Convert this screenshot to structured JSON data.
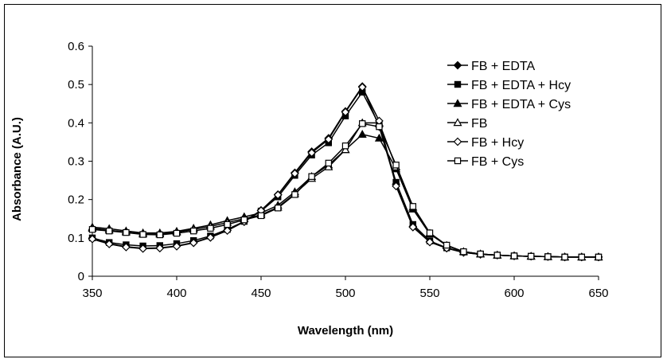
{
  "chart_data": {
    "type": "line",
    "title": "",
    "xlabel": "Wavelength (nm)",
    "ylabel": "Absorbance (A.U.)",
    "xlim": [
      350,
      650
    ],
    "ylim": [
      0,
      0.6
    ],
    "x_ticks": [
      "350",
      "400",
      "450",
      "500",
      "550",
      "600",
      "650"
    ],
    "y_ticks": [
      "0",
      "0.1",
      "0.2",
      "0.3",
      "0.4",
      "0.5",
      "0.6"
    ],
    "grid": false,
    "legend_position": "top-right",
    "x": [
      350,
      360,
      370,
      380,
      390,
      400,
      410,
      420,
      430,
      440,
      450,
      460,
      470,
      480,
      490,
      500,
      510,
      520,
      530,
      540,
      550,
      560,
      570,
      580,
      590,
      600,
      610,
      620,
      630,
      640,
      650
    ],
    "series": [
      {
        "name": "FB + EDTA",
        "marker": "diamond-filled",
        "values": [
          0.098,
          0.085,
          0.077,
          0.073,
          0.074,
          0.079,
          0.088,
          0.102,
          0.12,
          0.143,
          0.172,
          0.213,
          0.27,
          0.325,
          0.36,
          0.43,
          0.495,
          0.39,
          0.24,
          0.13,
          0.09,
          0.073,
          0.062,
          0.057,
          0.055,
          0.053,
          0.052,
          0.051,
          0.05,
          0.05,
          0.05
        ]
      },
      {
        "name": "FB + EDTA + Hcy",
        "marker": "square-filled",
        "values": [
          0.1,
          0.088,
          0.082,
          0.079,
          0.08,
          0.085,
          0.093,
          0.105,
          0.122,
          0.143,
          0.17,
          0.207,
          0.263,
          0.316,
          0.348,
          0.418,
          0.48,
          0.395,
          0.245,
          0.135,
          0.092,
          0.074,
          0.063,
          0.058,
          0.055,
          0.053,
          0.052,
          0.051,
          0.05,
          0.05,
          0.05
        ]
      },
      {
        "name": "FB + EDTA + Cys",
        "marker": "triangle-filled",
        "values": [
          0.128,
          0.124,
          0.118,
          0.113,
          0.113,
          0.117,
          0.125,
          0.134,
          0.145,
          0.155,
          0.165,
          0.185,
          0.22,
          0.26,
          0.29,
          0.33,
          0.37,
          0.36,
          0.28,
          0.175,
          0.11,
          0.08,
          0.064,
          0.058,
          0.055,
          0.053,
          0.052,
          0.051,
          0.05,
          0.05,
          0.05
        ]
      },
      {
        "name": "FB",
        "marker": "triangle-open",
        "values": [
          0.125,
          0.12,
          0.115,
          0.11,
          0.11,
          0.115,
          0.122,
          0.13,
          0.14,
          0.15,
          0.16,
          0.18,
          0.215,
          0.255,
          0.285,
          0.33,
          0.4,
          0.4,
          0.285,
          0.18,
          0.112,
          0.08,
          0.064,
          0.058,
          0.055,
          0.053,
          0.052,
          0.051,
          0.05,
          0.05,
          0.05
        ]
      },
      {
        "name": "FB + Hcy",
        "marker": "diamond-open",
        "values": [
          0.097,
          0.084,
          0.076,
          0.072,
          0.073,
          0.078,
          0.087,
          0.101,
          0.119,
          0.142,
          0.171,
          0.212,
          0.268,
          0.322,
          0.357,
          0.428,
          0.493,
          0.405,
          0.235,
          0.128,
          0.089,
          0.073,
          0.062,
          0.057,
          0.055,
          0.053,
          0.052,
          0.051,
          0.05,
          0.05,
          0.05
        ]
      },
      {
        "name": "FB + Cys",
        "marker": "square-open",
        "values": [
          0.122,
          0.118,
          0.114,
          0.109,
          0.108,
          0.112,
          0.118,
          0.125,
          0.135,
          0.147,
          0.158,
          0.178,
          0.213,
          0.26,
          0.295,
          0.34,
          0.398,
          0.39,
          0.29,
          0.182,
          0.113,
          0.081,
          0.064,
          0.058,
          0.055,
          0.053,
          0.052,
          0.051,
          0.05,
          0.05,
          0.05
        ]
      }
    ]
  }
}
